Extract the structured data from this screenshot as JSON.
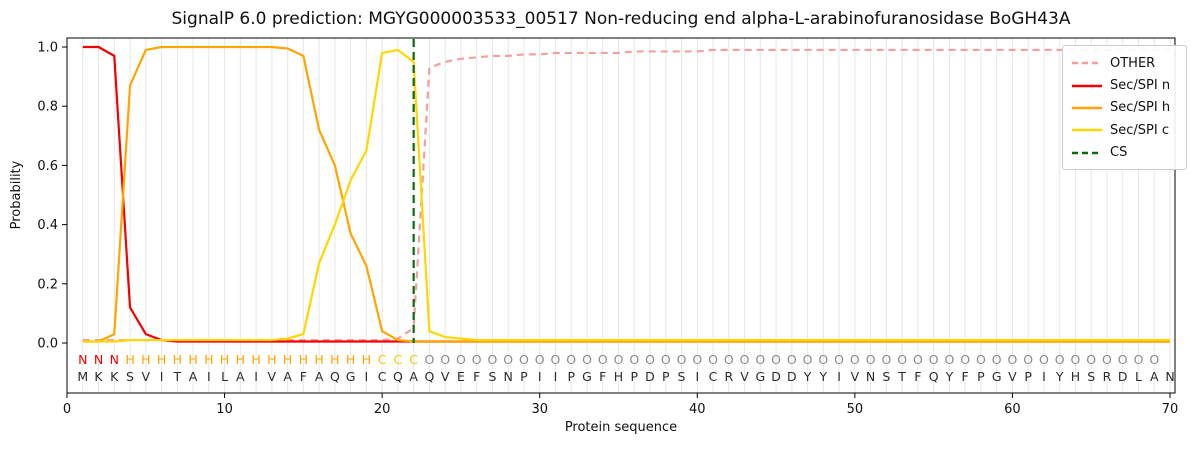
{
  "chart_data": {
    "type": "line",
    "title": "SignalP 6.0 prediction: MGYG000003533_00517 Non-reducing end alpha-L-arabinofuranosidase BoGH43A",
    "xlabel": "Protein sequence",
    "ylabel": "Probability",
    "xticks": [
      0,
      10,
      20,
      30,
      40,
      50,
      60,
      70
    ],
    "yticks": [
      "0.0",
      "0.2",
      "0.4",
      "0.6",
      "0.8",
      "1.0"
    ],
    "xlim": [
      0,
      70.3
    ],
    "ylim": [
      -0.17,
      1.03
    ],
    "grid": "vertical-per-residue",
    "legend_position": "upper right",
    "x": [
      1,
      2,
      3,
      4,
      5,
      6,
      7,
      8,
      9,
      10,
      11,
      12,
      13,
      14,
      15,
      16,
      17,
      18,
      19,
      20,
      21,
      22,
      23,
      24,
      25,
      26,
      27,
      28,
      29,
      30,
      31,
      32,
      33,
      34,
      35,
      36,
      37,
      38,
      39,
      40,
      41,
      42,
      43,
      44,
      45,
      46,
      47,
      48,
      49,
      50,
      51,
      52,
      53,
      54,
      55,
      56,
      57,
      58,
      59,
      60,
      61,
      62,
      63,
      64,
      65,
      66,
      67,
      68,
      69,
      70
    ],
    "series": [
      {
        "name": "OTHER",
        "color": "#f2a09b",
        "style": "dashed",
        "values": [
          0.01,
          0.01,
          0.01,
          0.01,
          0.01,
          0.01,
          0.01,
          0.01,
          0.01,
          0.01,
          0.01,
          0.01,
          0.01,
          0.01,
          0.01,
          0.01,
          0.01,
          0.01,
          0.01,
          0.01,
          0.015,
          0.05,
          0.93,
          0.95,
          0.96,
          0.965,
          0.97,
          0.97,
          0.975,
          0.975,
          0.98,
          0.98,
          0.98,
          0.98,
          0.98,
          0.985,
          0.985,
          0.985,
          0.985,
          0.985,
          0.99,
          0.99,
          0.99,
          0.99,
          0.99,
          0.99,
          0.99,
          0.99,
          0.99,
          0.99,
          0.99,
          0.99,
          0.99,
          0.99,
          0.99,
          0.99,
          0.99,
          0.99,
          0.99,
          0.99,
          0.99,
          0.99,
          0.99,
          0.99,
          0.99,
          0.99,
          0.99,
          0.99,
          0.99,
          0.99
        ]
      },
      {
        "name": "Sec/SPI n",
        "color": "#f40000",
        "style": "solid",
        "values": [
          1.0,
          1.0,
          0.97,
          0.12,
          0.03,
          0.01,
          0.005,
          0.005,
          0.005,
          0.005,
          0.005,
          0.005,
          0.005,
          0.005,
          0.005,
          0.005,
          0.005,
          0.005,
          0.005,
          0.005,
          0.005,
          0.005,
          0.005,
          0.005,
          0.005,
          0.005,
          0.005,
          0.005,
          0.005,
          0.005,
          0.005,
          0.005,
          0.005,
          0.005,
          0.005,
          0.005,
          0.005,
          0.005,
          0.005,
          0.005,
          0.005,
          0.005,
          0.005,
          0.005,
          0.005,
          0.005,
          0.005,
          0.005,
          0.005,
          0.005,
          0.005,
          0.005,
          0.005,
          0.005,
          0.005,
          0.005,
          0.005,
          0.005,
          0.005,
          0.005,
          0.005,
          0.005,
          0.005,
          0.005,
          0.005,
          0.005,
          0.005,
          0.005,
          0.005,
          0.005
        ]
      },
      {
        "name": "Sec/SPI h",
        "color": "#ffa500",
        "style": "solid",
        "values": [
          0.005,
          0.005,
          0.03,
          0.87,
          0.99,
          1.0,
          1.0,
          1.0,
          1.0,
          1.0,
          1.0,
          1.0,
          1.0,
          0.995,
          0.97,
          0.72,
          0.6,
          0.37,
          0.26,
          0.04,
          0.01,
          0.005,
          0.005,
          0.005,
          0.005,
          0.005,
          0.005,
          0.005,
          0.005,
          0.005,
          0.005,
          0.005,
          0.005,
          0.005,
          0.005,
          0.005,
          0.005,
          0.005,
          0.005,
          0.005,
          0.005,
          0.005,
          0.005,
          0.005,
          0.005,
          0.005,
          0.005,
          0.005,
          0.005,
          0.005,
          0.005,
          0.005,
          0.005,
          0.005,
          0.005,
          0.005,
          0.005,
          0.005,
          0.005,
          0.005,
          0.005,
          0.005,
          0.005,
          0.005,
          0.005,
          0.005,
          0.005,
          0.005,
          0.005,
          0.005
        ]
      },
      {
        "name": "Sec/SPI c",
        "color": "#ffd700",
        "style": "solid",
        "values": [
          0.005,
          0.005,
          0.005,
          0.01,
          0.01,
          0.01,
          0.01,
          0.01,
          0.01,
          0.01,
          0.01,
          0.01,
          0.01,
          0.015,
          0.03,
          0.27,
          0.4,
          0.55,
          0.65,
          0.98,
          0.99,
          0.95,
          0.04,
          0.02,
          0.015,
          0.01,
          0.01,
          0.01,
          0.01,
          0.01,
          0.01,
          0.01,
          0.01,
          0.01,
          0.01,
          0.01,
          0.01,
          0.01,
          0.01,
          0.01,
          0.01,
          0.01,
          0.01,
          0.01,
          0.01,
          0.01,
          0.01,
          0.01,
          0.01,
          0.01,
          0.01,
          0.01,
          0.01,
          0.01,
          0.01,
          0.01,
          0.01,
          0.01,
          0.01,
          0.01,
          0.01,
          0.01,
          0.01,
          0.01,
          0.01,
          0.01,
          0.01,
          0.01,
          0.01,
          0.01
        ]
      }
    ],
    "cs_line": {
      "name": "CS",
      "x": 22,
      "color": "#0a6b0a",
      "style": "dashed"
    },
    "legend": [
      {
        "label": "OTHER",
        "color": "#f2a09b",
        "dashed": true
      },
      {
        "label": "Sec/SPI n",
        "color": "#f40000",
        "dashed": false
      },
      {
        "label": "Sec/SPI h",
        "color": "#ffa500",
        "dashed": false
      },
      {
        "label": "Sec/SPI c",
        "color": "#ffd700",
        "dashed": false
      },
      {
        "label": "CS",
        "color": "#0a6b0a",
        "dashed": true
      }
    ],
    "sequence": "MKKSVITAILAIVAFAQGICQAQVEFSNPIIPGFHPDPSICRVGDDYYIVNSTFQYFPGVPIYHSRDLAN",
    "residue_labels": "NNNHHHHHHHHHHHHHHHHCCCOOOOOOOOOOOOOOOOOOOOOOOOOOOOOOOOOOOOOOOOOOOOOOO",
    "label_colors": {
      "N": "#f40000",
      "H": "#ffa500",
      "C": "#f0c800",
      "O": "#8a8a8a"
    },
    "sequence_color": "#2b2b2b"
  }
}
